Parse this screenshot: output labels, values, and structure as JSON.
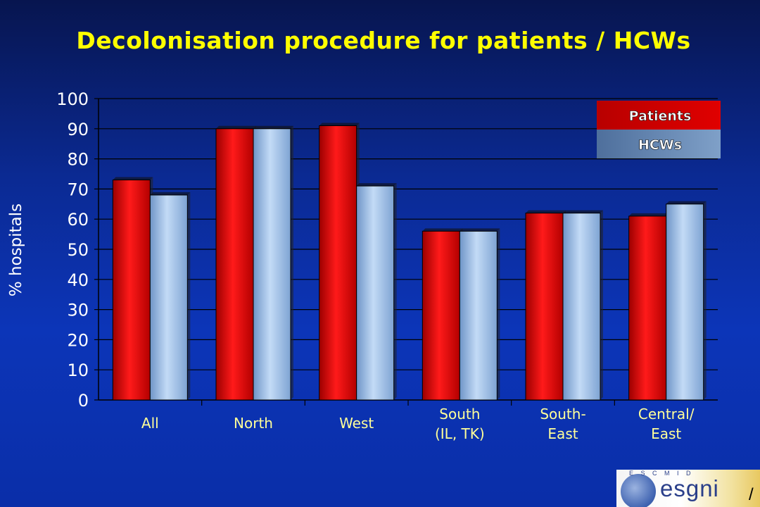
{
  "title": "Decolonisation procedure for patients / HCWs",
  "chart_data": {
    "type": "bar",
    "categories": [
      "All",
      "North",
      "West",
      "South\n(IL, TK)",
      "South-\nEast",
      "Central/\nEast"
    ],
    "series": [
      {
        "name": "Patients",
        "values": [
          73,
          90,
          91,
          56,
          62,
          61
        ],
        "color": "#ee0000"
      },
      {
        "name": "HCWs",
        "values": [
          68,
          90,
          71,
          56,
          62,
          65
        ],
        "color": "#a4c6ec"
      }
    ],
    "ylabel": "% hospitals",
    "xlabel": "",
    "ylim": [
      0,
      100
    ],
    "yticks": [
      0,
      10,
      20,
      30,
      40,
      50,
      60,
      70,
      80,
      90,
      100
    ],
    "grid": true,
    "legend": "top-right"
  },
  "logo": {
    "text": "esgni",
    "small_text": "E S C M I D",
    "slash": "/"
  }
}
